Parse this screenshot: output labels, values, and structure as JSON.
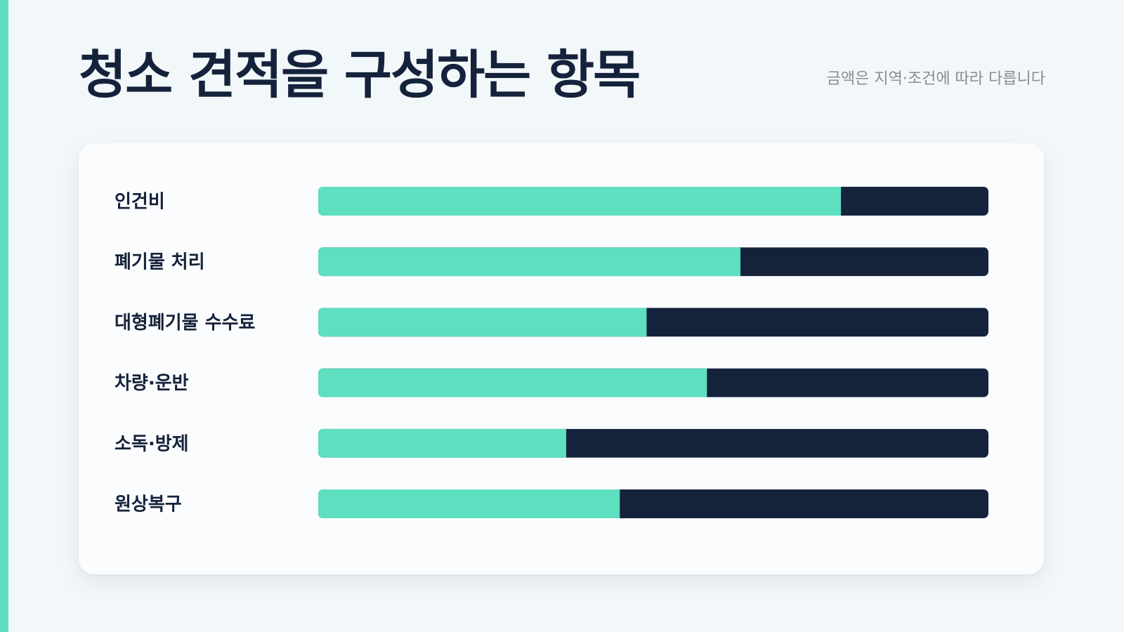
{
  "header": {
    "title": "청소 견적을 구성하는 항목",
    "note": "금액은 지역·조건에 따라 다릅니다"
  },
  "colors": {
    "accent": "#5ddfc0",
    "dark": "#15223b",
    "background": "#f2f7f9",
    "card": "#fafcfe"
  },
  "chart_data": {
    "type": "bar",
    "orientation": "horizontal",
    "stacked": true,
    "categories": [
      "인건비",
      "폐기물 처리",
      "대형폐기물 수수료",
      "차량·운반",
      "소독·방제",
      "원상복구"
    ],
    "values": [
      0.78,
      0.63,
      0.49,
      0.58,
      0.37,
      0.45
    ],
    "ylim": [
      0,
      1
    ],
    "grid": false,
    "legend": "none"
  }
}
